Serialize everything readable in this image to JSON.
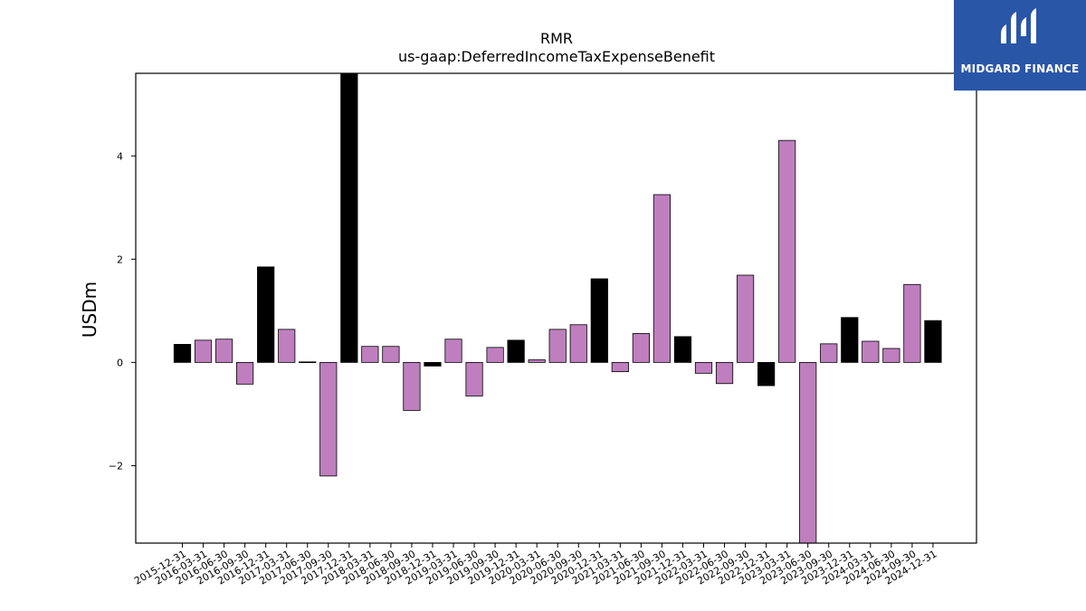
{
  "logo": {
    "name": "MIDGARD FINANCE",
    "bg_color": "#2a56a8"
  },
  "chart_data": {
    "type": "bar",
    "title": "RMR",
    "subtitle": "us-gaap:DeferredIncomeTaxExpenseBenefit",
    "xlabel": "",
    "ylabel": "USDm",
    "ylim": [
      -3.5,
      5.6
    ],
    "yticks": [
      -2,
      0,
      2,
      4
    ],
    "grid": false,
    "legend": "none",
    "colors": {
      "q4": "#000000",
      "quarter": "#bf7fbf",
      "edge": "#000000"
    },
    "categories": [
      "2015-12-31",
      "2016-03-31",
      "2016-06-30",
      "2016-09-30",
      "2016-12-31",
      "2017-03-31",
      "2017-06-30",
      "2017-09-30",
      "2017-12-31",
      "2018-03-31",
      "2018-06-30",
      "2018-09-30",
      "2018-12-31",
      "2019-03-31",
      "2019-06-30",
      "2019-09-30",
      "2019-12-31",
      "2020-03-31",
      "2020-06-30",
      "2020-09-30",
      "2020-12-31",
      "2021-03-31",
      "2021-06-30",
      "2021-09-30",
      "2021-12-31",
      "2022-03-31",
      "2022-06-30",
      "2022-09-30",
      "2022-12-31",
      "2023-03-31",
      "2023-06-30",
      "2023-09-30",
      "2023-12-31",
      "2024-03-31",
      "2024-06-30",
      "2024-09-30",
      "2024-12-31"
    ],
    "values": [
      0.35,
      0.43,
      0.45,
      -0.42,
      1.85,
      0.64,
      0.01,
      -2.2,
      5.6,
      0.31,
      0.31,
      -0.93,
      -0.07,
      0.45,
      -0.65,
      0.29,
      0.43,
      0.05,
      0.64,
      0.73,
      1.62,
      -0.18,
      0.56,
      3.25,
      0.5,
      -0.21,
      -0.41,
      1.69,
      -0.45,
      4.3,
      -3.5,
      0.36,
      0.87,
      0.41,
      0.27,
      1.51,
      0.81
    ]
  }
}
